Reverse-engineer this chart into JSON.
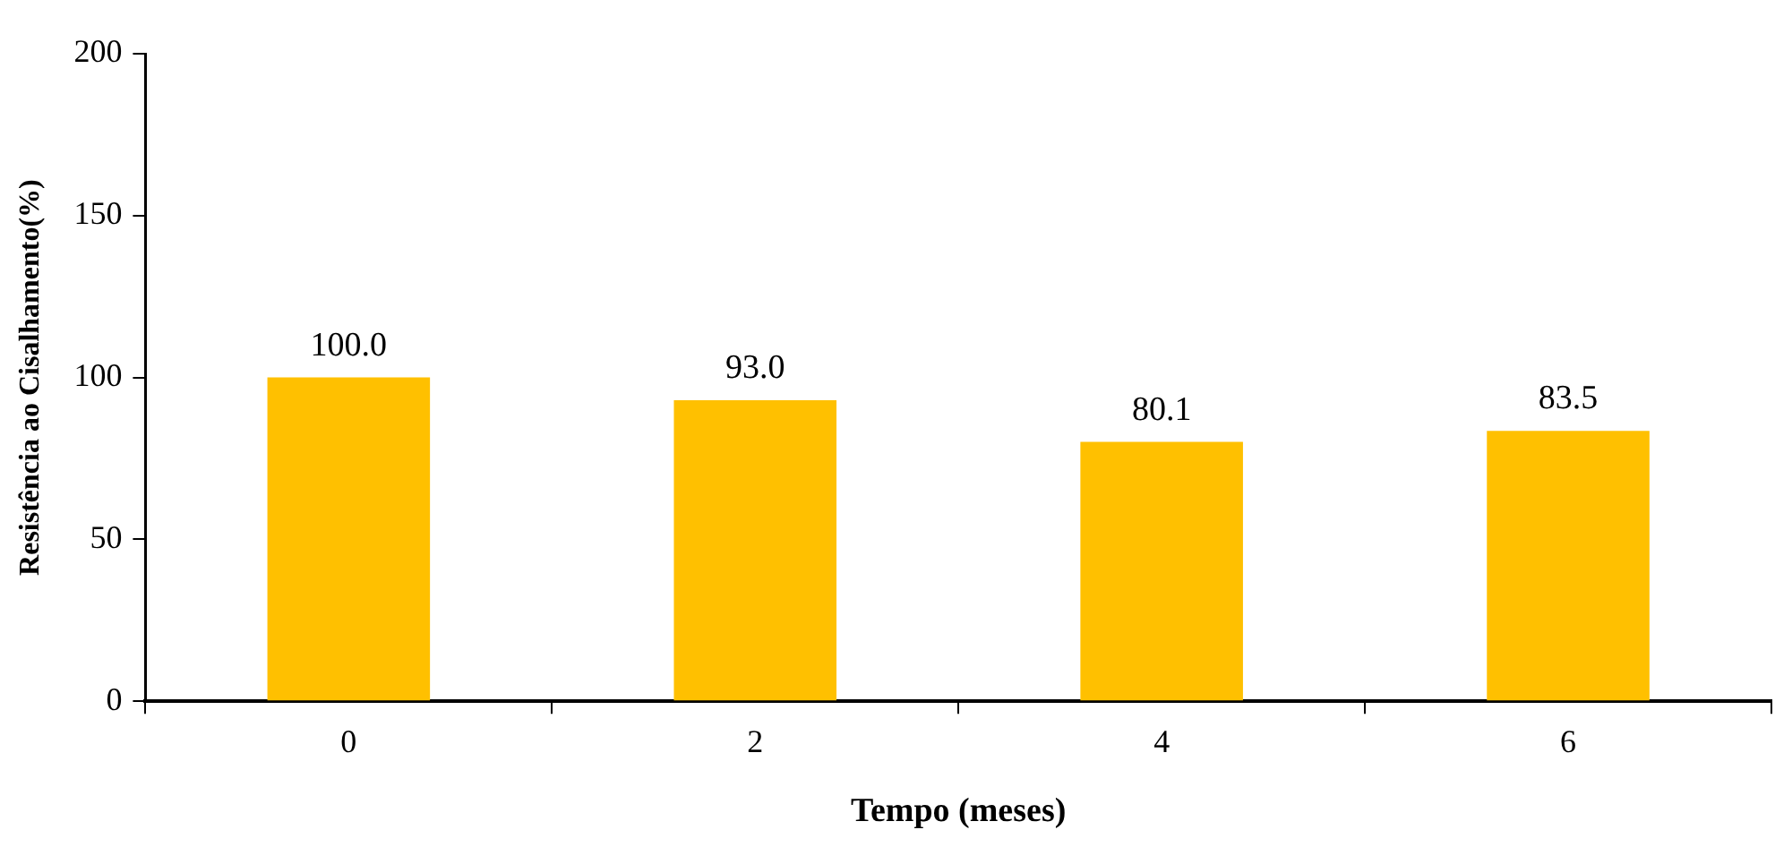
{
  "chart_data": {
    "type": "bar",
    "xlabel": "Tempo (meses)",
    "ylabel": "Resistência ao Cisalhamento(%)",
    "categories": [
      "0",
      "2",
      "4",
      "6"
    ],
    "series": [
      {
        "color": "#ffc000",
        "values": [
          100.0,
          93.0,
          80.1,
          83.5
        ]
      }
    ],
    "value_labels": [
      "100.0",
      "93.0",
      "80.1",
      "83.5"
    ],
    "ylim": [
      0,
      200
    ],
    "yticks": [
      0,
      50,
      100,
      150,
      200
    ],
    "grid": false,
    "legend": false
  }
}
